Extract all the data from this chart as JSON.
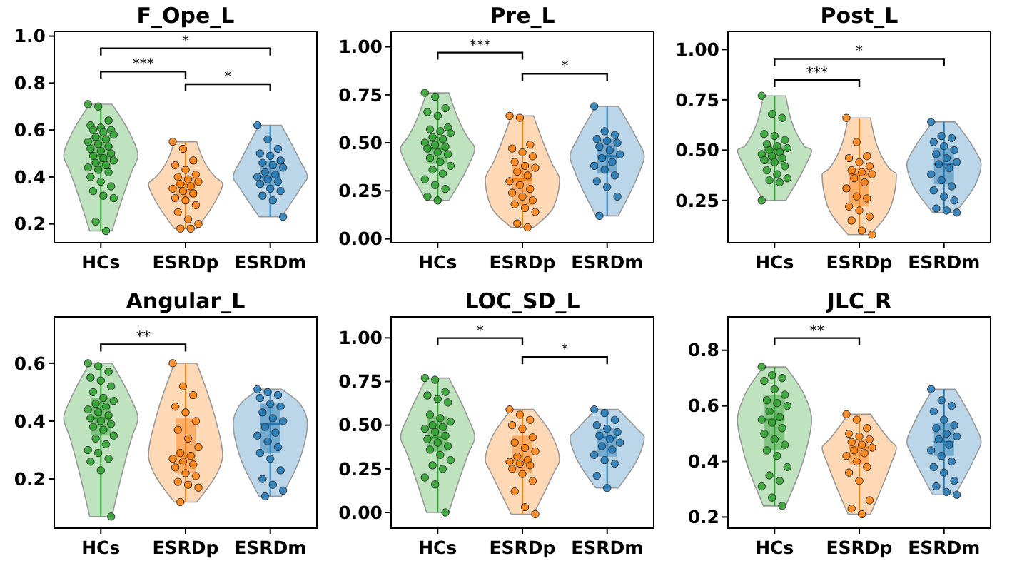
{
  "chart_data": [
    {
      "type": "box",
      "title": "F_Ope_L",
      "categories": [
        "HCs",
        "ESRDp",
        "ESRDm"
      ],
      "colors": [
        "#2ca02c",
        "#ff7f0e",
        "#1f77b4"
      ],
      "ylim": [
        0.12,
        1.02
      ],
      "yticks": [
        0.2,
        0.4,
        0.6,
        0.8,
        {
          "value": 1,
          "label": "1.0"
        }
      ],
      "boxes": [
        {
          "low": 0.17,
          "q1": 0.43,
          "median": 0.49,
          "q3": 0.58,
          "high": 0.71
        },
        {
          "low": 0.18,
          "q1": 0.31,
          "median": 0.37,
          "q3": 0.4,
          "high": 0.55
        },
        {
          "low": 0.23,
          "q1": 0.36,
          "median": 0.4,
          "q3": 0.47,
          "high": 0.62
        }
      ],
      "series": [
        {
          "type": "scatter",
          "color": "#2ca02c",
          "x": [
            "HCs",
            "HCs",
            "HCs",
            "HCs",
            "HCs",
            "HCs",
            "HCs",
            "HCs",
            "HCs",
            "HCs",
            "HCs",
            "HCs",
            "HCs",
            "HCs",
            "HCs",
            "HCs",
            "HCs",
            "HCs",
            "HCs",
            "HCs",
            "HCs",
            "HCs",
            "HCs",
            "HCs",
            "HCs",
            "HCs",
            "HCs",
            "HCs",
            "HCs",
            "HCs",
            "HCs",
            "HCs",
            "HCs"
          ],
          "values": [
            0.71,
            0.7,
            0.64,
            0.62,
            0.61,
            0.6,
            0.6,
            0.59,
            0.58,
            0.57,
            0.56,
            0.55,
            0.54,
            0.53,
            0.52,
            0.51,
            0.5,
            0.49,
            0.48,
            0.47,
            0.46,
            0.45,
            0.44,
            0.43,
            0.42,
            0.4,
            0.38,
            0.36,
            0.34,
            0.32,
            0.31,
            0.21,
            0.17
          ]
        },
        {
          "type": "scatter",
          "color": "#ff7f0e",
          "x": [
            "ESRDp",
            "ESRDp",
            "ESRDp",
            "ESRDp",
            "ESRDp",
            "ESRDp",
            "ESRDp",
            "ESRDp",
            "ESRDp",
            "ESRDp",
            "ESRDp",
            "ESRDp",
            "ESRDp",
            "ESRDp",
            "ESRDp",
            "ESRDp",
            "ESRDp",
            "ESRDp",
            "ESRDp",
            "ESRDp",
            "ESRDp",
            "ESRDp"
          ],
          "values": [
            0.55,
            0.52,
            0.47,
            0.45,
            0.43,
            0.41,
            0.4,
            0.39,
            0.38,
            0.37,
            0.36,
            0.35,
            0.34,
            0.33,
            0.31,
            0.3,
            0.28,
            0.25,
            0.22,
            0.2,
            0.18,
            0.18
          ]
        },
        {
          "type": "scatter",
          "color": "#1f77b4",
          "x": [
            "ESRDm",
            "ESRDm",
            "ESRDm",
            "ESRDm",
            "ESRDm",
            "ESRDm",
            "ESRDm",
            "ESRDm",
            "ESRDm",
            "ESRDm",
            "ESRDm",
            "ESRDm",
            "ESRDm",
            "ESRDm",
            "ESRDm",
            "ESRDm",
            "ESRDm",
            "ESRDm",
            "ESRDm",
            "ESRDm"
          ],
          "values": [
            0.62,
            0.56,
            0.52,
            0.5,
            0.49,
            0.47,
            0.46,
            0.45,
            0.44,
            0.42,
            0.41,
            0.4,
            0.39,
            0.38,
            0.37,
            0.35,
            0.34,
            0.32,
            0.3,
            0.23
          ]
        }
      ],
      "annotations": [
        "*",
        "***",
        "*"
      ]
    },
    {
      "type": "box",
      "title": "Pre_L",
      "categories": [
        "HCs",
        "ESRDp",
        "ESRDm"
      ],
      "colors": [
        "#2ca02c",
        "#ff7f0e",
        "#1f77b4"
      ],
      "ylim": [
        -0.02,
        1.08
      ],
      "yticks": [
        {
          "value": 0,
          "label": "0.00"
        },
        {
          "value": 0.25,
          "label": "0.25"
        },
        {
          "value": 0.5,
          "label": "0.50"
        },
        {
          "value": 0.75,
          "label": "0.75"
        },
        {
          "value": 1,
          "label": "1.00"
        }
      ],
      "boxes": [
        {
          "low": 0.2,
          "q1": 0.39,
          "median": 0.47,
          "q3": 0.53,
          "high": 0.76
        },
        {
          "low": 0.06,
          "q1": 0.17,
          "median": 0.31,
          "q3": 0.39,
          "high": 0.64
        },
        {
          "low": 0.12,
          "q1": 0.34,
          "median": 0.43,
          "q3": 0.52,
          "high": 0.69
        }
      ],
      "series": [
        {
          "type": "scatter",
          "color": "#2ca02c",
          "x": [
            "HCs",
            "HCs",
            "HCs",
            "HCs",
            "HCs",
            "HCs",
            "HCs",
            "HCs",
            "HCs",
            "HCs",
            "HCs",
            "HCs",
            "HCs",
            "HCs",
            "HCs",
            "HCs",
            "HCs",
            "HCs",
            "HCs",
            "HCs",
            "HCs",
            "HCs",
            "HCs",
            "HCs",
            "HCs",
            "HCs",
            "HCs"
          ],
          "values": [
            0.76,
            0.74,
            0.68,
            0.66,
            0.64,
            0.58,
            0.57,
            0.56,
            0.55,
            0.53,
            0.52,
            0.5,
            0.49,
            0.48,
            0.47,
            0.45,
            0.44,
            0.42,
            0.4,
            0.38,
            0.36,
            0.34,
            0.31,
            0.28,
            0.26,
            0.22,
            0.2
          ]
        },
        {
          "type": "scatter",
          "color": "#ff7f0e",
          "x": [
            "ESRDp",
            "ESRDp",
            "ESRDp",
            "ESRDp",
            "ESRDp",
            "ESRDp",
            "ESRDp",
            "ESRDp",
            "ESRDp",
            "ESRDp",
            "ESRDp",
            "ESRDp",
            "ESRDp",
            "ESRDp",
            "ESRDp",
            "ESRDp",
            "ESRDp",
            "ESRDp",
            "ESRDp",
            "ESRDp",
            "ESRDp",
            "ESRDp"
          ],
          "values": [
            0.64,
            0.63,
            0.49,
            0.47,
            0.45,
            0.43,
            0.4,
            0.38,
            0.37,
            0.35,
            0.33,
            0.3,
            0.28,
            0.26,
            0.24,
            0.22,
            0.2,
            0.18,
            0.16,
            0.14,
            0.08,
            0.06
          ]
        },
        {
          "type": "scatter",
          "color": "#1f77b4",
          "x": [
            "ESRDm",
            "ESRDm",
            "ESRDm",
            "ESRDm",
            "ESRDm",
            "ESRDm",
            "ESRDm",
            "ESRDm",
            "ESRDm",
            "ESRDm",
            "ESRDm",
            "ESRDm",
            "ESRDm",
            "ESRDm",
            "ESRDm",
            "ESRDm",
            "ESRDm",
            "ESRDm"
          ],
          "values": [
            0.69,
            0.56,
            0.54,
            0.52,
            0.51,
            0.5,
            0.48,
            0.46,
            0.44,
            0.42,
            0.4,
            0.38,
            0.36,
            0.33,
            0.3,
            0.27,
            0.22,
            0.12
          ]
        }
      ],
      "annotations": [
        "***",
        "*"
      ]
    },
    {
      "type": "box",
      "title": "Post_L",
      "categories": [
        "HCs",
        "ESRDp",
        "ESRDm"
      ],
      "colors": [
        "#2ca02c",
        "#ff7f0e",
        "#1f77b4"
      ],
      "ylim": [
        0.04,
        1.09
      ],
      "yticks": [
        {
          "value": 0.25,
          "label": "0.25"
        },
        {
          "value": 0.5,
          "label": "0.50"
        },
        {
          "value": 0.75,
          "label": "0.75"
        },
        {
          "value": 1,
          "label": "1.00"
        }
      ],
      "boxes": [
        {
          "low": 0.25,
          "q1": 0.43,
          "median": 0.5,
          "q3": 0.52,
          "high": 0.77
        },
        {
          "low": 0.08,
          "q1": 0.22,
          "median": 0.38,
          "q3": 0.41,
          "high": 0.66
        },
        {
          "low": 0.19,
          "q1": 0.33,
          "median": 0.43,
          "q3": 0.51,
          "high": 0.64
        }
      ],
      "series": [
        {
          "type": "scatter",
          "color": "#2ca02c",
          "x": [
            "HCs",
            "HCs",
            "HCs",
            "HCs",
            "HCs",
            "HCs",
            "HCs",
            "HCs",
            "HCs",
            "HCs",
            "HCs",
            "HCs",
            "HCs",
            "HCs",
            "HCs",
            "HCs",
            "HCs",
            "HCs",
            "HCs",
            "HCs",
            "HCs",
            "HCs",
            "HCs"
          ],
          "values": [
            0.77,
            0.68,
            0.66,
            0.58,
            0.57,
            0.55,
            0.53,
            0.52,
            0.51,
            0.5,
            0.49,
            0.48,
            0.47,
            0.46,
            0.45,
            0.44,
            0.42,
            0.4,
            0.38,
            0.36,
            0.35,
            0.34,
            0.25
          ]
        },
        {
          "type": "scatter",
          "color": "#ff7f0e",
          "x": [
            "ESRDp",
            "ESRDp",
            "ESRDp",
            "ESRDp",
            "ESRDp",
            "ESRDp",
            "ESRDp",
            "ESRDp",
            "ESRDp",
            "ESRDp",
            "ESRDp",
            "ESRDp",
            "ESRDp",
            "ESRDp",
            "ESRDp",
            "ESRDp",
            "ESRDp",
            "ESRDp",
            "ESRDp",
            "ESRDp"
          ],
          "values": [
            0.66,
            0.54,
            0.47,
            0.46,
            0.44,
            0.42,
            0.4,
            0.39,
            0.38,
            0.36,
            0.34,
            0.31,
            0.27,
            0.26,
            0.22,
            0.2,
            0.17,
            0.15,
            0.1,
            0.08
          ]
        },
        {
          "type": "scatter",
          "color": "#1f77b4",
          "x": [
            "ESRDm",
            "ESRDm",
            "ESRDm",
            "ESRDm",
            "ESRDm",
            "ESRDm",
            "ESRDm",
            "ESRDm",
            "ESRDm",
            "ESRDm",
            "ESRDm",
            "ESRDm",
            "ESRDm",
            "ESRDm",
            "ESRDm",
            "ESRDm",
            "ESRDm",
            "ESRDm",
            "ESRDm",
            "ESRDm"
          ],
          "values": [
            0.64,
            0.57,
            0.56,
            0.54,
            0.52,
            0.5,
            0.48,
            0.46,
            0.44,
            0.43,
            0.41,
            0.38,
            0.35,
            0.32,
            0.3,
            0.27,
            0.25,
            0.21,
            0.2,
            0.19
          ]
        }
      ],
      "annotations": [
        "*",
        "***"
      ]
    },
    {
      "type": "box",
      "title": "Angular_L",
      "categories": [
        "HCs",
        "ESRDp",
        "ESRDm"
      ],
      "colors": [
        "#2ca02c",
        "#ff7f0e",
        "#1f77b4"
      ],
      "ylim": [
        0.03,
        0.76
      ],
      "yticks": [
        0.2,
        0.4,
        0.6
      ],
      "boxes": [
        {
          "low": 0.07,
          "q1": 0.35,
          "median": 0.41,
          "q3": 0.48,
          "high": 0.6
        },
        {
          "low": 0.12,
          "q1": 0.22,
          "median": 0.28,
          "q3": 0.41,
          "high": 0.6
        },
        {
          "low": 0.14,
          "q1": 0.29,
          "median": 0.39,
          "q3": 0.46,
          "high": 0.51
        }
      ],
      "series": [
        {
          "type": "scatter",
          "color": "#2ca02c",
          "x": [
            "HCs",
            "HCs",
            "HCs",
            "HCs",
            "HCs",
            "HCs",
            "HCs",
            "HCs",
            "HCs",
            "HCs",
            "HCs",
            "HCs",
            "HCs",
            "HCs",
            "HCs",
            "HCs",
            "HCs",
            "HCs",
            "HCs",
            "HCs",
            "HCs",
            "HCs",
            "HCs",
            "HCs",
            "HCs",
            "HCs",
            "HCs",
            "HCs"
          ],
          "values": [
            0.6,
            0.59,
            0.57,
            0.55,
            0.54,
            0.52,
            0.5,
            0.48,
            0.47,
            0.46,
            0.45,
            0.44,
            0.43,
            0.42,
            0.41,
            0.4,
            0.39,
            0.38,
            0.37,
            0.35,
            0.34,
            0.32,
            0.3,
            0.29,
            0.27,
            0.26,
            0.23,
            0.07
          ]
        },
        {
          "type": "scatter",
          "color": "#ff7f0e",
          "x": [
            "ESRDp",
            "ESRDp",
            "ESRDp",
            "ESRDp",
            "ESRDp",
            "ESRDp",
            "ESRDp",
            "ESRDp",
            "ESRDp",
            "ESRDp",
            "ESRDp",
            "ESRDp",
            "ESRDp",
            "ESRDp",
            "ESRDp",
            "ESRDp",
            "ESRDp",
            "ESRDp",
            "ESRDp",
            "ESRDp",
            "ESRDp"
          ],
          "values": [
            0.6,
            0.52,
            0.49,
            0.45,
            0.43,
            0.4,
            0.37,
            0.34,
            0.31,
            0.29,
            0.28,
            0.27,
            0.26,
            0.25,
            0.24,
            0.22,
            0.21,
            0.19,
            0.18,
            0.17,
            0.12
          ]
        },
        {
          "type": "scatter",
          "color": "#1f77b4",
          "x": [
            "ESRDm",
            "ESRDm",
            "ESRDm",
            "ESRDm",
            "ESRDm",
            "ESRDm",
            "ESRDm",
            "ESRDm",
            "ESRDm",
            "ESRDm",
            "ESRDm",
            "ESRDm",
            "ESRDm",
            "ESRDm",
            "ESRDm",
            "ESRDm",
            "ESRDm",
            "ESRDm",
            "ESRDm",
            "ESRDm",
            "ESRDm"
          ],
          "values": [
            0.51,
            0.5,
            0.49,
            0.48,
            0.46,
            0.45,
            0.43,
            0.41,
            0.4,
            0.38,
            0.36,
            0.35,
            0.33,
            0.31,
            0.29,
            0.27,
            0.23,
            0.2,
            0.18,
            0.16,
            0.14
          ]
        }
      ],
      "annotations": [
        "**"
      ]
    },
    {
      "type": "box",
      "title": "LOC_SD_L",
      "categories": [
        "HCs",
        "ESRDp",
        "ESRDm"
      ],
      "colors": [
        "#2ca02c",
        "#ff7f0e",
        "#1f77b4"
      ],
      "ylim": [
        -0.09,
        1.12
      ],
      "yticks": [
        {
          "value": 0,
          "label": "0.00"
        },
        {
          "value": 0.25,
          "label": "0.25"
        },
        {
          "value": 0.5,
          "label": "0.50"
        },
        {
          "value": 0.75,
          "label": "0.75"
        },
        {
          "value": 1,
          "label": "1.00"
        }
      ],
      "boxes": [
        {
          "low": 0,
          "q1": 0.35,
          "median": 0.43,
          "q3": 0.55,
          "high": 0.77
        },
        {
          "low": -0.01,
          "q1": 0.23,
          "median": 0.3,
          "q3": 0.44,
          "high": 0.59
        },
        {
          "low": 0.14,
          "q1": 0.32,
          "median": 0.43,
          "q3": 0.48,
          "high": 0.59
        }
      ],
      "series": [
        {
          "type": "scatter",
          "color": "#2ca02c",
          "x": [
            "HCs",
            "HCs",
            "HCs",
            "HCs",
            "HCs",
            "HCs",
            "HCs",
            "HCs",
            "HCs",
            "HCs",
            "HCs",
            "HCs",
            "HCs",
            "HCs",
            "HCs",
            "HCs",
            "HCs",
            "HCs",
            "HCs",
            "HCs",
            "HCs",
            "HCs",
            "HCs",
            "HCs",
            "HCs"
          ],
          "values": [
            0.77,
            0.76,
            0.69,
            0.67,
            0.65,
            0.63,
            0.56,
            0.54,
            0.52,
            0.5,
            0.49,
            0.48,
            0.46,
            0.44,
            0.42,
            0.4,
            0.38,
            0.36,
            0.33,
            0.3,
            0.27,
            0.25,
            0.2,
            0.16,
            0
          ]
        },
        {
          "type": "scatter",
          "color": "#ff7f0e",
          "x": [
            "ESRDp",
            "ESRDp",
            "ESRDp",
            "ESRDp",
            "ESRDp",
            "ESRDp",
            "ESRDp",
            "ESRDp",
            "ESRDp",
            "ESRDp",
            "ESRDp",
            "ESRDp",
            "ESRDp",
            "ESRDp",
            "ESRDp",
            "ESRDp",
            "ESRDp",
            "ESRDp",
            "ESRDp",
            "ESRDp"
          ],
          "values": [
            0.59,
            0.56,
            0.53,
            0.5,
            0.48,
            0.43,
            0.4,
            0.37,
            0.35,
            0.32,
            0.3,
            0.29,
            0.28,
            0.27,
            0.25,
            0.22,
            0.18,
            0.12,
            0.03,
            -0.01
          ]
        },
        {
          "type": "scatter",
          "color": "#1f77b4",
          "x": [
            "ESRDm",
            "ESRDm",
            "ESRDm",
            "ESRDm",
            "ESRDm",
            "ESRDm",
            "ESRDm",
            "ESRDm",
            "ESRDm",
            "ESRDm",
            "ESRDm",
            "ESRDm",
            "ESRDm",
            "ESRDm",
            "ESRDm",
            "ESRDm"
          ],
          "values": [
            0.59,
            0.57,
            0.53,
            0.5,
            0.48,
            0.46,
            0.44,
            0.42,
            0.4,
            0.38,
            0.36,
            0.33,
            0.3,
            0.28,
            0.21,
            0.14
          ]
        }
      ],
      "annotations": [
        "*",
        "*"
      ]
    },
    {
      "type": "box",
      "title": "JLC_R",
      "categories": [
        "HCs",
        "ESRDp",
        "ESRDm"
      ],
      "colors": [
        "#2ca02c",
        "#ff7f0e",
        "#1f77b4"
      ],
      "ylim": [
        0.16,
        0.92
      ],
      "yticks": [
        0.2,
        0.4,
        0.6,
        0.8
      ],
      "boxes": [
        {
          "low": 0.24,
          "q1": 0.44,
          "median": 0.55,
          "q3": 0.64,
          "high": 0.74
        },
        {
          "low": 0.21,
          "q1": 0.39,
          "median": 0.45,
          "q3": 0.48,
          "high": 0.57
        },
        {
          "low": 0.28,
          "q1": 0.42,
          "median": 0.47,
          "q3": 0.54,
          "high": 0.66
        }
      ],
      "series": [
        {
          "type": "scatter",
          "color": "#2ca02c",
          "x": [
            "HCs",
            "HCs",
            "HCs",
            "HCs",
            "HCs",
            "HCs",
            "HCs",
            "HCs",
            "HCs",
            "HCs",
            "HCs",
            "HCs",
            "HCs",
            "HCs",
            "HCs",
            "HCs",
            "HCs",
            "HCs",
            "HCs",
            "HCs",
            "HCs",
            "HCs",
            "HCs",
            "HCs",
            "HCs"
          ],
          "values": [
            0.74,
            0.71,
            0.7,
            0.69,
            0.66,
            0.64,
            0.62,
            0.61,
            0.6,
            0.58,
            0.56,
            0.55,
            0.54,
            0.52,
            0.5,
            0.48,
            0.46,
            0.44,
            0.42,
            0.38,
            0.35,
            0.33,
            0.31,
            0.27,
            0.24
          ]
        },
        {
          "type": "scatter",
          "color": "#ff7f0e",
          "x": [
            "ESRDp",
            "ESRDp",
            "ESRDp",
            "ESRDp",
            "ESRDp",
            "ESRDp",
            "ESRDp",
            "ESRDp",
            "ESRDp",
            "ESRDp",
            "ESRDp",
            "ESRDp",
            "ESRDp",
            "ESRDp",
            "ESRDp",
            "ESRDp",
            "ESRDp",
            "ESRDp",
            "ESRDp"
          ],
          "values": [
            0.57,
            0.55,
            0.52,
            0.5,
            0.49,
            0.48,
            0.47,
            0.46,
            0.45,
            0.44,
            0.43,
            0.42,
            0.4,
            0.38,
            0.36,
            0.33,
            0.26,
            0.23,
            0.21
          ]
        },
        {
          "type": "scatter",
          "color": "#1f77b4",
          "x": [
            "ESRDm",
            "ESRDm",
            "ESRDm",
            "ESRDm",
            "ESRDm",
            "ESRDm",
            "ESRDm",
            "ESRDm",
            "ESRDm",
            "ESRDm",
            "ESRDm",
            "ESRDm",
            "ESRDm",
            "ESRDm",
            "ESRDm",
            "ESRDm",
            "ESRDm",
            "ESRDm",
            "ESRDm",
            "ESRDm"
          ],
          "values": [
            0.66,
            0.62,
            0.6,
            0.58,
            0.55,
            0.53,
            0.52,
            0.5,
            0.49,
            0.48,
            0.46,
            0.44,
            0.42,
            0.4,
            0.38,
            0.36,
            0.33,
            0.31,
            0.29,
            0.28
          ]
        }
      ],
      "annotations": [
        "**"
      ]
    }
  ]
}
